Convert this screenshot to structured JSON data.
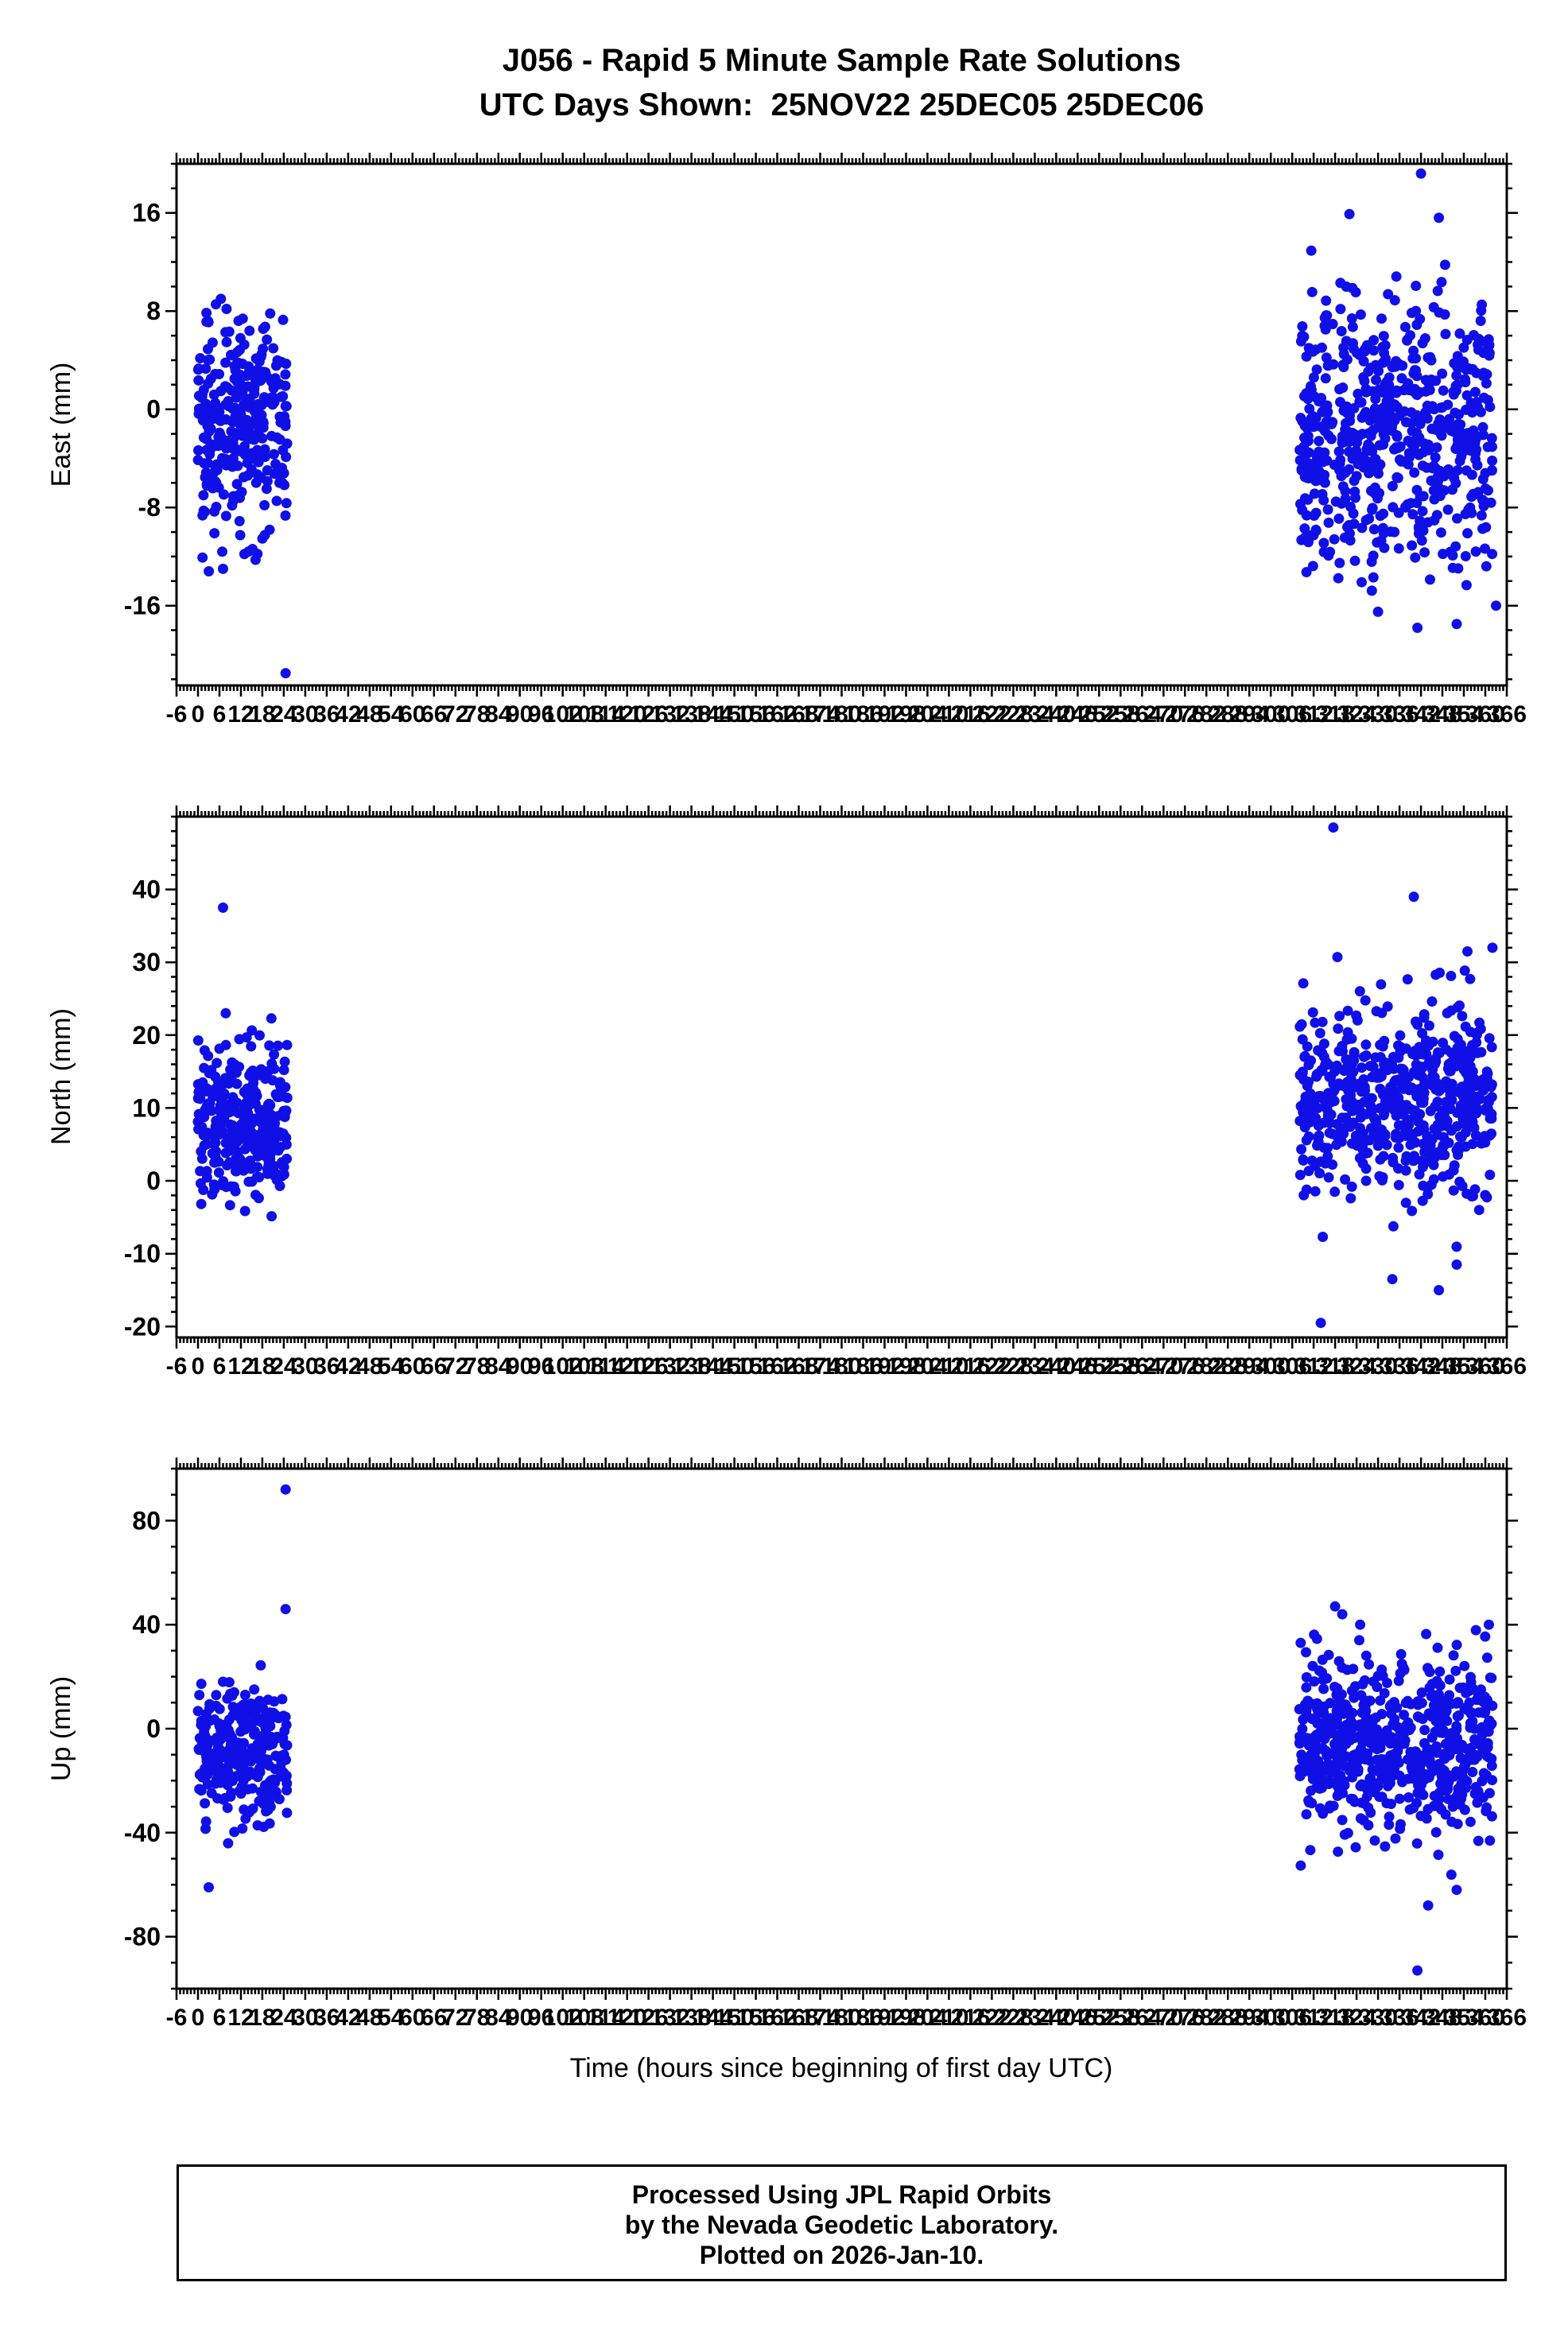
{
  "title": {
    "line1": "J056 - Rapid 5 Minute Sample Rate Solutions",
    "line2": "UTC Days Shown:  25NOV22 25DEC05 25DEC06"
  },
  "xlabel": "Time (hours since beginning of first day UTC)",
  "footer": {
    "line1": "Processed Using JPL Rapid Orbits",
    "line2": "by the Nevada Geodetic Laboratory.",
    "line3": "Plotted on 2026-Jan-10."
  },
  "style": {
    "marker_color": "#1010E6",
    "axis_color": "#000000",
    "marker_radius": 6.5
  },
  "chart_data": [
    {
      "type": "scatter",
      "name": "east",
      "ylabel": "East (mm)",
      "xlim": [
        -6,
        366
      ],
      "xtick_step": 6,
      "xminor_step": 1,
      "ylim": [
        -22.5,
        20
      ],
      "yticks": [
        -16,
        -8,
        0,
        8,
        16
      ],
      "yminor_step": 2,
      "grid": false,
      "clusters": [
        {
          "seed": 11,
          "n": 310,
          "x_range": [
            0,
            25
          ],
          "y_mean": -1.5,
          "y_std": 4.6,
          "y_clip": [
            -13.5,
            9.5
          ]
        },
        {
          "seed": 12,
          "n": 620,
          "x_range": [
            308,
            362
          ],
          "y_mean": -2.0,
          "y_std": 5.2,
          "y_clip": [
            -15,
            13.5
          ]
        }
      ],
      "extra_points": [
        [
          13,
          -11.8
        ],
        [
          24.5,
          -21.5
        ],
        [
          7,
          -13
        ],
        [
          322,
          15.9
        ],
        [
          342,
          19.2
        ],
        [
          347,
          15.6
        ],
        [
          330,
          -16.5
        ],
        [
          341,
          -17.8
        ],
        [
          352,
          -17.5
        ],
        [
          363,
          -16
        ]
      ]
    },
    {
      "type": "scatter",
      "name": "north",
      "ylabel": "North (mm)",
      "xlim": [
        -6,
        366
      ],
      "xtick_step": 6,
      "xminor_step": 1,
      "ylim": [
        -21.5,
        50
      ],
      "yticks": [
        -20,
        -10,
        0,
        10,
        20,
        30,
        40
      ],
      "yminor_step": 2,
      "grid": false,
      "clusters": [
        {
          "seed": 21,
          "n": 310,
          "x_range": [
            0,
            25
          ],
          "y_mean": 8.5,
          "y_std": 5.5,
          "y_clip": [
            -12,
            25
          ]
        },
        {
          "seed": 22,
          "n": 620,
          "x_range": [
            308,
            362
          ],
          "y_mean": 11,
          "y_std": 6.0,
          "y_clip": [
            -16,
            32
          ]
        }
      ],
      "extra_points": [
        [
          7,
          37.5
        ],
        [
          317.5,
          48.5
        ],
        [
          340,
          39
        ],
        [
          355,
          31.5
        ],
        [
          362,
          32
        ],
        [
          314,
          -19.5
        ],
        [
          334,
          -13.5
        ],
        [
          347,
          -15
        ],
        [
          352,
          -11.5
        ]
      ]
    },
    {
      "type": "scatter",
      "name": "up",
      "ylabel": "Up (mm)",
      "xlim": [
        -6,
        366
      ],
      "xtick_step": 6,
      "xminor_step": 1,
      "ylim": [
        -100,
        100
      ],
      "yticks": [
        -80,
        -40,
        0,
        40,
        80
      ],
      "yminor_step": 10,
      "grid": false,
      "clusters": [
        {
          "seed": 31,
          "n": 310,
          "x_range": [
            0,
            25
          ],
          "y_mean": -9,
          "y_std": 13,
          "y_clip": [
            -45,
            25
          ]
        },
        {
          "seed": 32,
          "n": 620,
          "x_range": [
            308,
            362
          ],
          "y_mean": -6,
          "y_std": 16,
          "y_clip": [
            -58,
            38
          ]
        }
      ],
      "extra_points": [
        [
          24.5,
          92
        ],
        [
          24.5,
          46
        ],
        [
          3,
          -61
        ],
        [
          318,
          47
        ],
        [
          320,
          44
        ],
        [
          325,
          40
        ],
        [
          361,
          40
        ],
        [
          341,
          -93
        ],
        [
          344,
          -68
        ],
        [
          352,
          -62
        ]
      ]
    }
  ]
}
